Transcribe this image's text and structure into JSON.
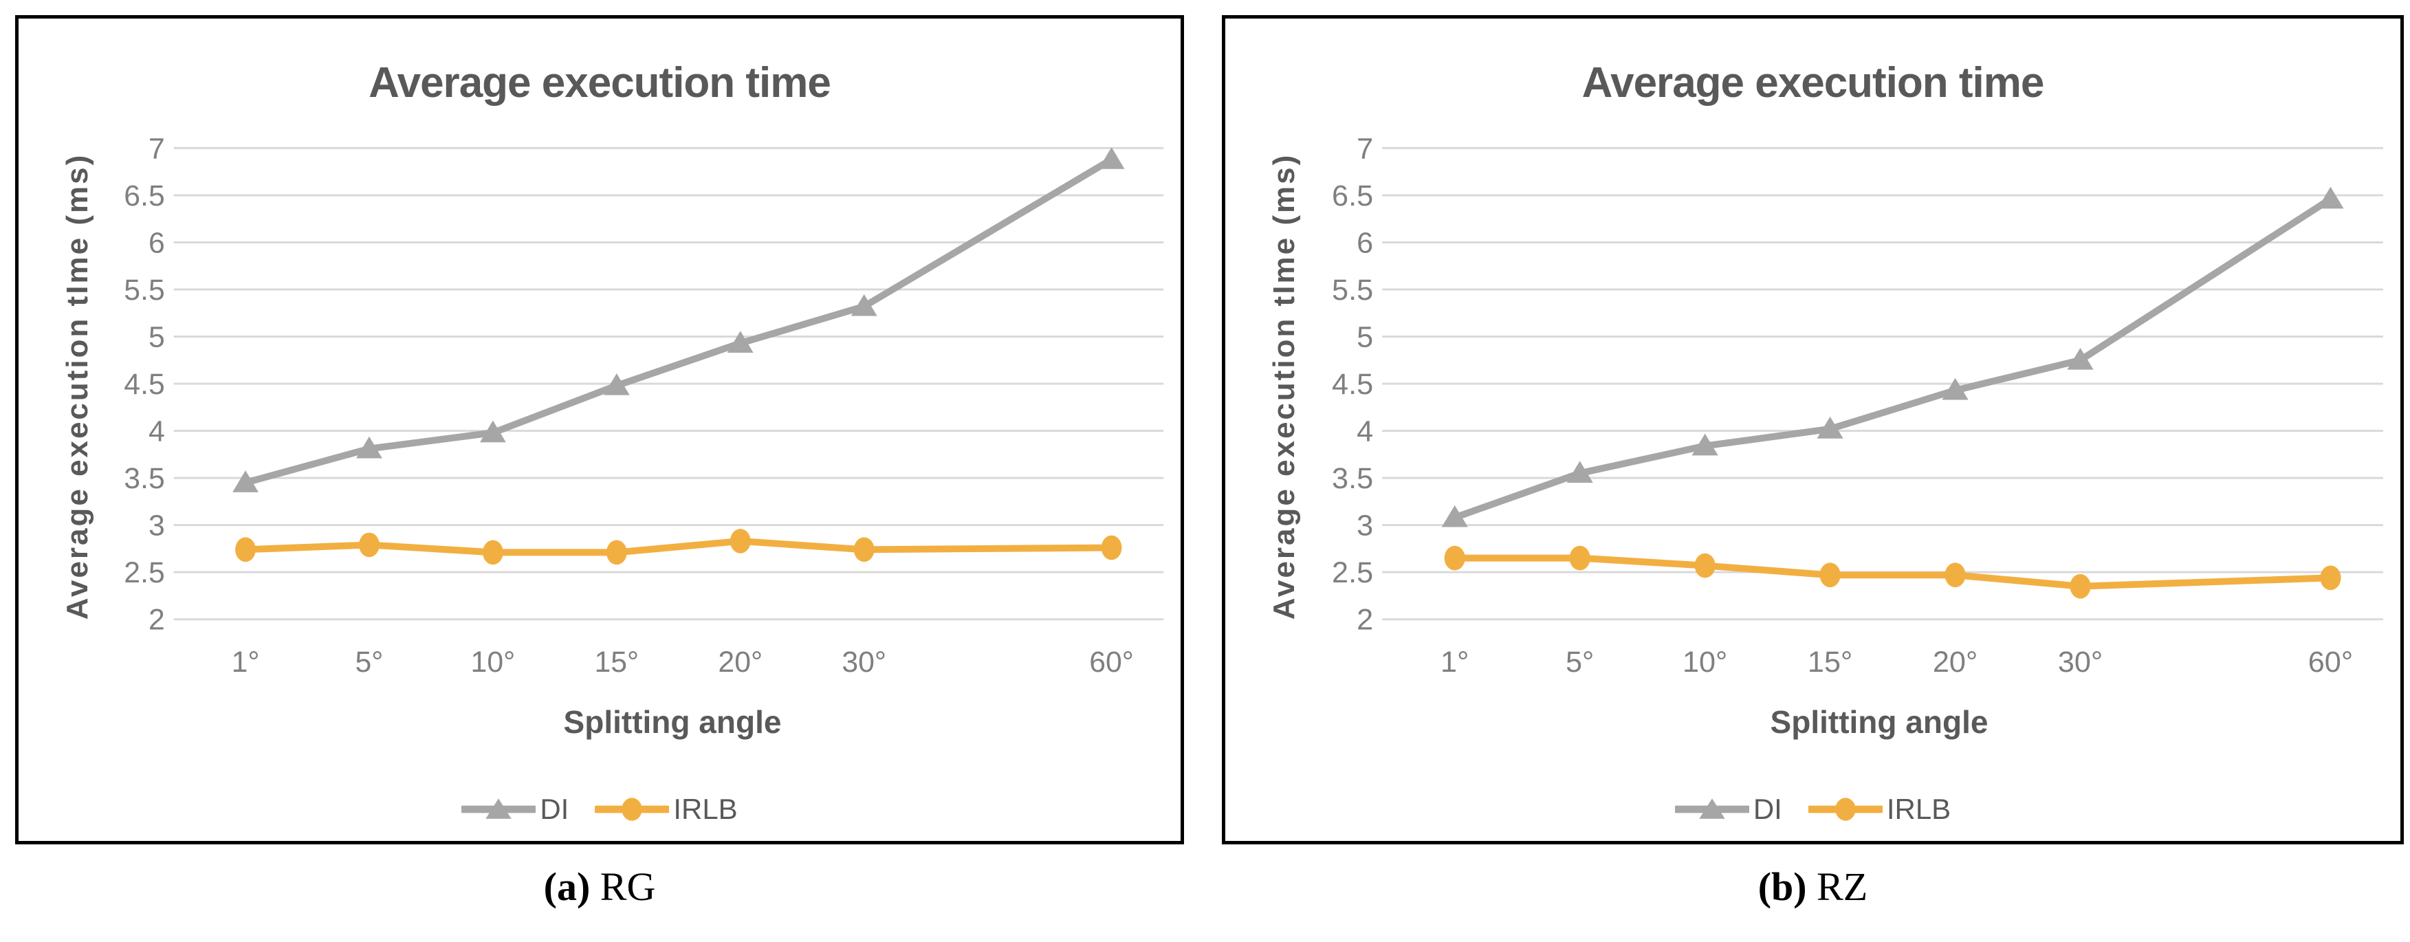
{
  "page": {
    "background": "#ffffff",
    "panel_border_color": "#000000"
  },
  "captions": [
    {
      "label": "(a)",
      "text": "RG"
    },
    {
      "label": "(b)",
      "text": "RZ"
    }
  ],
  "legend": {
    "entries": [
      "DI",
      "IRLB"
    ]
  },
  "chart_data": [
    {
      "type": "line",
      "title": "Average execution time",
      "xlabel": "Splitting angle",
      "ylabel": "Average execution tIme (ms)",
      "caption": "(a) RG",
      "categories": [
        "1°",
        "5°",
        "10°",
        "15°",
        "20°",
        "30°",
        "60°"
      ],
      "category_slots": [
        0,
        1,
        2,
        3,
        4,
        5,
        7
      ],
      "slot_count": 8,
      "ylim": [
        2,
        7
      ],
      "yticks": [
        "7",
        "6.5",
        "6",
        "5.5",
        "5",
        "4.5",
        "4",
        "3.5",
        "3",
        "2.5",
        "2"
      ],
      "grid": true,
      "legend_position": "bottom",
      "series": [
        {
          "name": "DI",
          "marker": "triangle",
          "color": "#a6a6a6",
          "values": [
            3.45,
            3.81,
            3.98,
            4.48,
            4.93,
            5.32,
            6.88
          ]
        },
        {
          "name": "IRLB",
          "marker": "circle",
          "color": "#f2af41",
          "values": [
            2.74,
            2.79,
            2.71,
            2.71,
            2.83,
            2.74,
            2.76
          ]
        }
      ],
      "colors": {
        "grid": "#d9d9d9",
        "tick_text": "#7f7f7f",
        "title_text": "#595959"
      }
    },
    {
      "type": "line",
      "title": "Average execution time",
      "xlabel": "Splitting angle",
      "ylabel": "Average execution tIme (ms)",
      "caption": "(b) RZ",
      "categories": [
        "1°",
        "5°",
        "10°",
        "15°",
        "20°",
        "30°",
        "60°"
      ],
      "category_slots": [
        0,
        1,
        2,
        3,
        4,
        5,
        7
      ],
      "slot_count": 8,
      "ylim": [
        2,
        7
      ],
      "yticks": [
        "7",
        "6.5",
        "6",
        "5.5",
        "5",
        "4.5",
        "4",
        "3.5",
        "3",
        "2.5",
        "2"
      ],
      "grid": true,
      "legend_position": "bottom",
      "series": [
        {
          "name": "DI",
          "marker": "triangle",
          "color": "#a6a6a6",
          "values": [
            3.08,
            3.55,
            3.84,
            4.02,
            4.43,
            4.75,
            6.46
          ]
        },
        {
          "name": "IRLB",
          "marker": "circle",
          "color": "#f2af41",
          "values": [
            2.65,
            2.65,
            2.57,
            2.47,
            2.47,
            2.35,
            2.44
          ]
        }
      ],
      "colors": {
        "grid": "#d9d9d9",
        "tick_text": "#7f7f7f",
        "title_text": "#595959"
      }
    }
  ]
}
